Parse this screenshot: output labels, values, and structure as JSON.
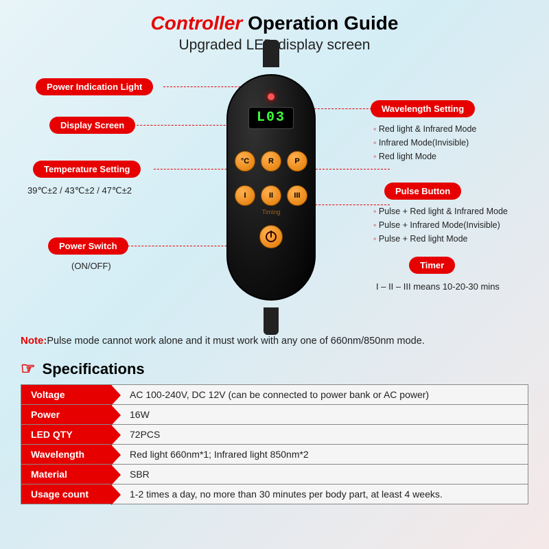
{
  "title": {
    "red": "Controller",
    "black": " Operation Guide"
  },
  "subtitle": "Upgraded LED display screen",
  "display_value": "L03",
  "buttons_row1": [
    "°C",
    "R",
    "P"
  ],
  "buttons_row2": [
    "I",
    "II",
    "III"
  ],
  "timing_label": "Timing",
  "callouts": {
    "power_ind": "Power Indication Light",
    "display": "Display Screen",
    "temp": "Temperature Setting",
    "temp_detail": "39℃±2 / 43℃±2 / 47℃±2",
    "power_sw": "Power Switch",
    "power_sw_detail": "(ON/OFF)",
    "wavelength": "Wavelength Setting",
    "wavelength_items": [
      "Red light & Infrared Mode",
      "Infrared Mode(Invisible)",
      "Red light Mode"
    ],
    "pulse": "Pulse Button",
    "pulse_items": [
      "Pulse + Red light & Infrared Mode",
      "Pulse + Infrared Mode(Invisible)",
      "Pulse + Red light Mode"
    ],
    "timer": "Timer",
    "timer_detail": "I – II – III means 10-20-30 mins"
  },
  "note_label": "Note:",
  "note_text": "Pulse mode cannot work alone and it must work with any one of 660nm/850nm mode.",
  "spec_title": "Specifications",
  "specs": [
    {
      "k": "Voltage",
      "v": "AC 100-240V, DC 12V (can be connected to power bank or AC power)"
    },
    {
      "k": "Power",
      "v": "16W"
    },
    {
      "k": "LED QTY",
      "v": "72PCS"
    },
    {
      "k": "Wavelength",
      "v": "Red light 660nm*1; Infrared light 850nm*2"
    },
    {
      "k": "Material",
      "v": "SBR"
    },
    {
      "k": "Usage count",
      "v": "1-2 times a day, no more than 30 minutes per body part, at least 4 weeks."
    }
  ]
}
